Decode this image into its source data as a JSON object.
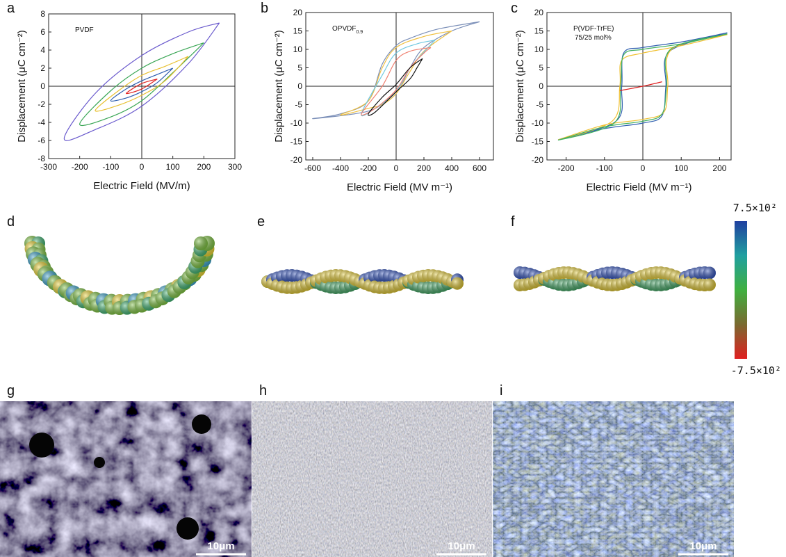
{
  "chart_data": [
    {
      "type": "loop",
      "panel": "a",
      "annotation": [
        "PVDF"
      ],
      "xlabel": "Electric Field (MV/m)",
      "ylabel": "Displacement (μC cm⁻²)",
      "xlim": [
        -300,
        300
      ],
      "xticks": [
        -300,
        -200,
        -100,
        0,
        100,
        200,
        300
      ],
      "ylim": [
        -8,
        8
      ],
      "yticks": [
        -8,
        -6,
        -4,
        -2,
        0,
        2,
        4,
        6,
        8
      ],
      "series": [
        {
          "color": "#6a5acd",
          "x": [
            250,
            150,
            0,
            -150,
            -250,
            -150,
            0,
            150,
            250
          ],
          "y": [
            7,
            6,
            3.4,
            -0.8,
            -5.8,
            -4.8,
            -2.2,
            2.5,
            7
          ]
        },
        {
          "color": "#3aa655",
          "x": [
            200,
            100,
            0,
            -100,
            -200,
            -100,
            0,
            100,
            200
          ],
          "y": [
            4.8,
            3.6,
            2,
            -0.5,
            -4.2,
            -3.4,
            -1.6,
            1.5,
            4.8
          ]
        },
        {
          "color": "#e8c030",
          "x": [
            150,
            75,
            0,
            -75,
            -150,
            -75,
            0,
            75,
            150
          ],
          "y": [
            3.3,
            2.2,
            1.2,
            -0.5,
            -2.7,
            -2.1,
            -1,
            0.6,
            3.3
          ]
        },
        {
          "color": "#2f5fb0",
          "x": [
            100,
            50,
            0,
            -50,
            -100,
            -50,
            0,
            50,
            100
          ],
          "y": [
            2,
            1.3,
            0.6,
            -0.3,
            -1.6,
            -1.3,
            -0.6,
            0.4,
            2
          ]
        },
        {
          "color": "#e02020",
          "x": [
            50,
            0,
            -50,
            0,
            50
          ],
          "y": [
            0.8,
            0.3,
            -0.8,
            -0.3,
            0.8
          ]
        }
      ]
    },
    {
      "type": "loop",
      "panel": "b",
      "annotation": [
        "OPVDF",
        "0.9"
      ],
      "xlabel": "Electric Field (MV m⁻¹)",
      "ylabel": "Displacement (μC cm⁻²)",
      "xlim": [
        -650,
        700
      ],
      "xticks": [
        -600,
        -400,
        -200,
        0,
        200,
        400,
        600
      ],
      "ylim": [
        -20,
        20
      ],
      "yticks": [
        -20,
        -15,
        -10,
        -5,
        0,
        5,
        10,
        15,
        20
      ],
      "series": [
        {
          "color": "#7b8fb8",
          "x": [
            600,
            300,
            100,
            0,
            -100,
            -200,
            -400,
            -600,
            -300,
            -150,
            0,
            100,
            200,
            400,
            600
          ],
          "y": [
            17.5,
            15.5,
            13,
            11,
            6,
            -4,
            -7.5,
            -8.8,
            -7.5,
            -6,
            -2,
            5,
            10.5,
            15,
            17.5
          ]
        },
        {
          "color": "#f0c040",
          "x": [
            400,
            200,
            0,
            -100,
            -200,
            -400,
            -200,
            -100,
            0,
            100,
            200,
            400
          ],
          "y": [
            15,
            13.5,
            10.5,
            5,
            -4,
            -7.8,
            -6,
            -5,
            -2,
            4,
            9.5,
            15
          ]
        },
        {
          "color": "#70c8e0",
          "x": [
            280,
            150,
            0,
            -100,
            -250,
            -150,
            0,
            100,
            280
          ],
          "y": [
            12.5,
            11.5,
            9,
            3,
            -7.5,
            -6,
            -1.5,
            5,
            12.5
          ]
        },
        {
          "color": "#f08070",
          "x": [
            250,
            100,
            0,
            -100,
            -250,
            -150,
            0,
            100,
            200,
            250
          ],
          "y": [
            10.5,
            9.5,
            7,
            0,
            -7.5,
            -6,
            -1,
            5,
            9,
            10.5
          ]
        },
        {
          "color": "#111111",
          "x": [
            190,
            100,
            0,
            -100,
            -200,
            -150,
            0,
            100,
            150,
            190
          ],
          "y": [
            7.5,
            5,
            0.5,
            -3,
            -7.5,
            -7,
            -1.5,
            2,
            5,
            7.5
          ]
        }
      ]
    },
    {
      "type": "loop",
      "panel": "c",
      "annotation": [
        "P(VDF-TrFE)",
        "75/25 mol%"
      ],
      "xlabel": "Electric Field (MV m⁻¹)",
      "ylabel": "Displacement (μC cm⁻²)",
      "xlim": [
        -250,
        230
      ],
      "xticks": [
        -200,
        -100,
        0,
        100,
        200
      ],
      "ylim": [
        -20,
        20
      ],
      "yticks": [
        -20,
        -15,
        -10,
        -5,
        0,
        5,
        10,
        15,
        20
      ],
      "series": [
        {
          "color": "#3060b0",
          "x": [
            220,
            100,
            0,
            -50,
            -55,
            -70,
            -220,
            -100,
            0,
            50,
            60,
            70,
            220
          ],
          "y": [
            14.5,
            12,
            10.5,
            9,
            0,
            -9.5,
            -14.5,
            -11.5,
            -10,
            -8,
            0,
            9.5,
            14.5
          ]
        },
        {
          "color": "#f0c030",
          "x": [
            220,
            100,
            0,
            -55,
            -60,
            -80,
            -220,
            -100,
            0,
            55,
            65,
            75,
            220
          ],
          "y": [
            14,
            11,
            9,
            7,
            0,
            -9.5,
            -14.5,
            -10.5,
            -9,
            -7,
            0,
            10,
            14
          ]
        },
        {
          "color": "#40b060",
          "x": [
            220,
            100,
            0,
            -50,
            -58,
            -75,
            -220,
            -100,
            0,
            50,
            62,
            72,
            220
          ],
          "y": [
            14.2,
            11.5,
            10,
            8.5,
            0,
            -10,
            -14.6,
            -11,
            -9.5,
            -7.5,
            0,
            10,
            14.2
          ]
        },
        {
          "color": "#e02020",
          "x": [
            -60,
            0,
            50
          ],
          "y": [
            -1.2,
            0,
            1.2
          ]
        }
      ]
    }
  ],
  "molecules": [
    "d",
    "e",
    "f"
  ],
  "colorbar": {
    "max_label": "7.5×10²",
    "min_label": "-7.5×10²",
    "colors": [
      "#e02020",
      "#7a6a30",
      "#40b040",
      "#20a0a0",
      "#2040a0"
    ]
  },
  "micrographs": [
    {
      "panel": "g",
      "scale": "10μm"
    },
    {
      "panel": "h",
      "scale": "10μm"
    },
    {
      "panel": "i",
      "scale": "10μm"
    }
  ]
}
